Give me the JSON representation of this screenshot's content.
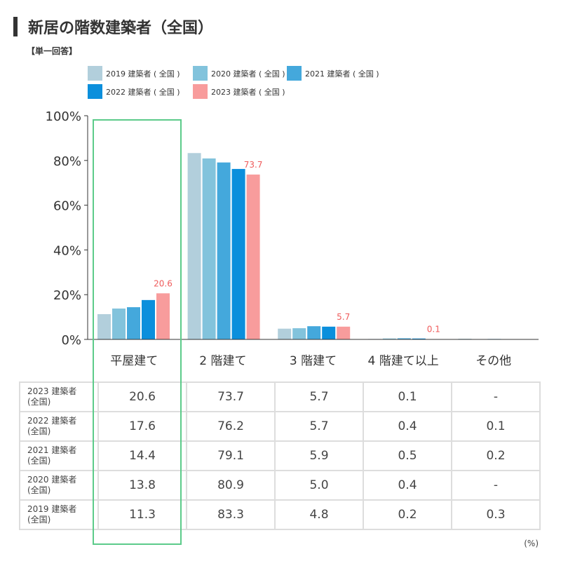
{
  "title": "新居の階数建築者（全国）",
  "subtitle": "【単一回答】",
  "unit_label": "(%)",
  "chart_data": {
    "type": "bar",
    "title": "新居の階数建築者（全国）",
    "categories": [
      "平屋建て",
      "2 階建て",
      "3 階建て",
      "4 階建て以上",
      "その他"
    ],
    "ylim": [
      0,
      100
    ],
    "yticks": [
      0,
      20,
      40,
      60,
      80,
      100
    ],
    "ytick_labels": [
      "0%",
      "20%",
      "40%",
      "60%",
      "80%",
      "100%"
    ],
    "legend_position": "top",
    "series": [
      {
        "name": "2019 建築者 ( 全国 )",
        "color": "#b2cfdc",
        "values": [
          11.3,
          83.3,
          4.8,
          0.2,
          0.3
        ]
      },
      {
        "name": "2020 建築者 ( 全国 )",
        "color": "#82c3dc",
        "values": [
          13.8,
          80.9,
          5.0,
          0.4,
          null
        ]
      },
      {
        "name": "2021 建築者 ( 全国 )",
        "color": "#44a8dc",
        "values": [
          14.4,
          79.1,
          5.9,
          0.5,
          0.2
        ]
      },
      {
        "name": "2022 建築者 ( 全国 )",
        "color": "#0b8fdc",
        "values": [
          17.6,
          76.2,
          5.7,
          0.4,
          0.1
        ]
      },
      {
        "name": "2023 建築者 ( 全国 )",
        "color": "#f89c9c",
        "values": [
          20.6,
          73.7,
          5.7,
          0.1,
          null
        ]
      }
    ],
    "data_labels": [
      "20.6",
      "73.7",
      "5.7",
      "0.1"
    ],
    "data_label_color": "#ef5b5b"
  },
  "table": {
    "rows": [
      {
        "label1": "2023 建築者",
        "label2": "(全国)",
        "cells": [
          "20.6",
          "73.7",
          "5.7",
          "0.1",
          "-"
        ]
      },
      {
        "label1": "2022 建築者",
        "label2": "(全国)",
        "cells": [
          "17.6",
          "76.2",
          "5.7",
          "0.4",
          "0.1"
        ]
      },
      {
        "label1": "2021 建築者",
        "label2": "(全国)",
        "cells": [
          "14.4",
          "79.1",
          "5.9",
          "0.5",
          "0.2"
        ]
      },
      {
        "label1": "2020 建築者",
        "label2": "(全国)",
        "cells": [
          "13.8",
          "80.9",
          "5.0",
          "0.4",
          "-"
        ]
      },
      {
        "label1": "2019 建築者",
        "label2": "(全国)",
        "cells": [
          "11.3",
          "83.3",
          "4.8",
          "0.2",
          "0.3"
        ]
      }
    ]
  }
}
